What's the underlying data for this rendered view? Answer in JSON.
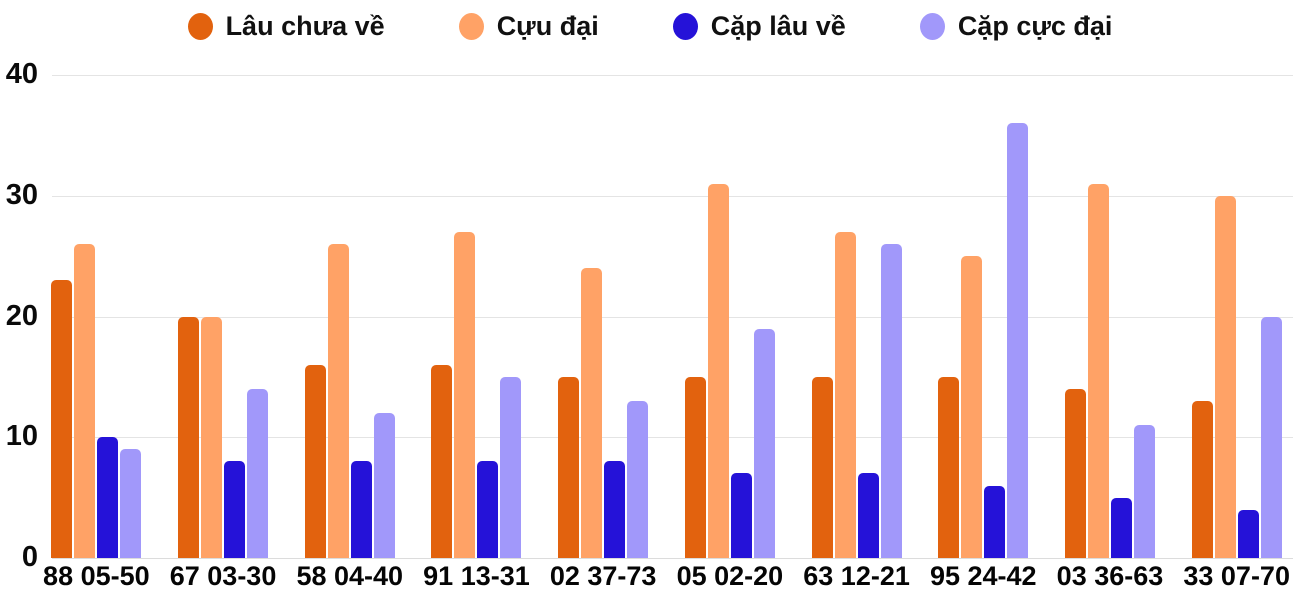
{
  "chart_data": {
    "type": "bar",
    "title": "",
    "categories": [
      "88 05-50",
      "67 03-30",
      "58 04-40",
      "91 13-31",
      "02 37-73",
      "05 02-20",
      "63 12-21",
      "95 24-42",
      "03 36-63",
      "33 07-70"
    ],
    "series": [
      {
        "name": "Lâu chưa về",
        "color": "#E2620E",
        "values": [
          23,
          20,
          16,
          16,
          15,
          15,
          15,
          15,
          14,
          13
        ]
      },
      {
        "name": "Cựu đại",
        "color": "#FFA266",
        "values": [
          26,
          20,
          26,
          27,
          24,
          31,
          27,
          25,
          31,
          30
        ]
      },
      {
        "name": "Cặp lâu về",
        "color": "#2512D8",
        "values": [
          10,
          8,
          8,
          8,
          8,
          7,
          7,
          6,
          5,
          4
        ]
      },
      {
        "name": "Cặp cực đại",
        "color": "#A198FA",
        "values": [
          9,
          14,
          12,
          15,
          13,
          19,
          26,
          36,
          11,
          20
        ]
      }
    ],
    "y_ticks": [
      0,
      10,
      20,
      30,
      40
    ],
    "ylim": [
      0,
      40
    ],
    "grid": true,
    "legend_position": "top"
  },
  "colors": {
    "background": "#FFFFFF",
    "gridline": "#E4E4E4",
    "axis_text": "#0A0A0A"
  }
}
